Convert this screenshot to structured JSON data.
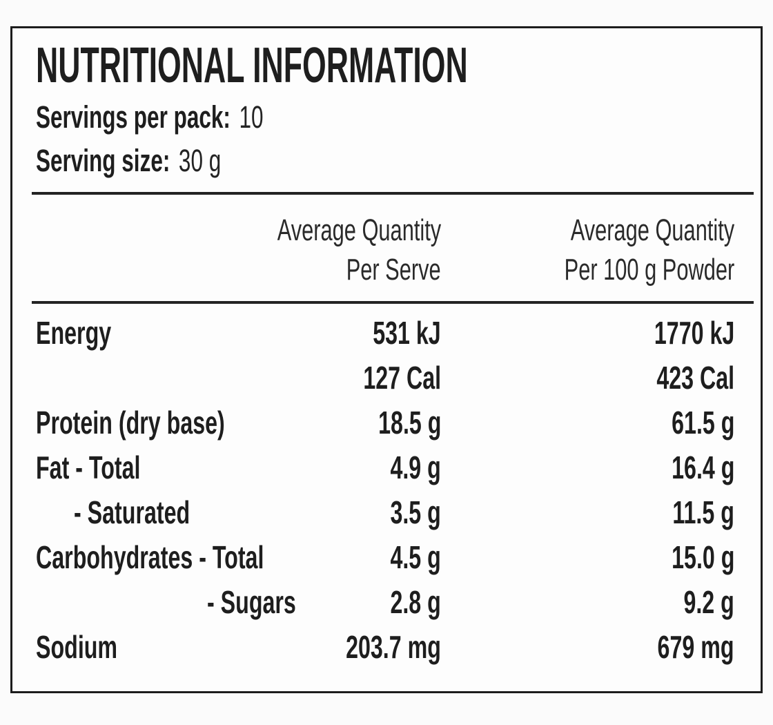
{
  "label": {
    "title": "NUTRITIONAL INFORMATION",
    "servings_per_pack": {
      "label": "Servings per pack:",
      "value": "10"
    },
    "serving_size": {
      "label": "Serving size:",
      "value": "30 g"
    },
    "columns": [
      {
        "line1": "Average Quantity",
        "line2": "Per Serve"
      },
      {
        "line1": "Average Quantity",
        "line2": "Per 100 g Powder"
      }
    ],
    "rows": [
      {
        "name": "Energy",
        "indent": 0,
        "per_serve": "531 kJ",
        "per_100g": "1770 kJ"
      },
      {
        "name": "",
        "indent": 0,
        "per_serve": "127 Cal",
        "per_100g": "423 Cal"
      },
      {
        "name": "Protein (dry base)",
        "indent": 0,
        "per_serve": "18.5 g",
        "per_100g": "61.5 g"
      },
      {
        "name": "Fat - Total",
        "indent": 0,
        "per_serve": "4.9 g",
        "per_100g": "16.4 g"
      },
      {
        "name": "- Saturated",
        "indent": 1,
        "per_serve": "3.5 g",
        "per_100g": "11.5 g"
      },
      {
        "name": "Carbohydrates - Total",
        "indent": 0,
        "per_serve": "4.5 g",
        "per_100g": "15.0 g"
      },
      {
        "name": "- Sugars",
        "indent": 2,
        "per_serve": "2.8 g",
        "per_100g": "9.2 g"
      },
      {
        "name": "Sodium",
        "indent": 0,
        "per_serve": "203.7 mg",
        "per_100g": "679 mg"
      }
    ],
    "colors": {
      "text": "#1e1e1e",
      "border": "#1c1c1c",
      "background": "#fbfbfb"
    }
  }
}
